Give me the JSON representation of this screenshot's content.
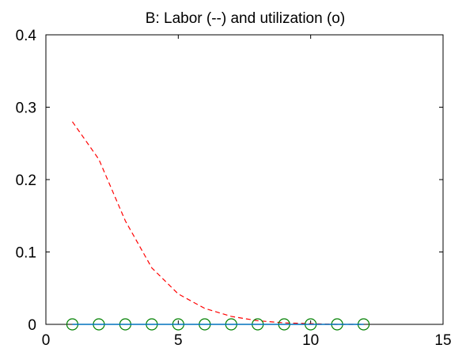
{
  "chart_data": {
    "type": "line",
    "title": "B: Labor (--) and utilization (o)",
    "xlabel": "",
    "ylabel": "",
    "xlim": [
      0,
      15
    ],
    "ylim": [
      0,
      0.4
    ],
    "xticks": [
      0,
      5,
      10,
      15
    ],
    "xtick_labels": [
      "0",
      "5",
      "10",
      "15"
    ],
    "yticks": [
      0,
      0.1,
      0.2,
      0.3,
      0.4
    ],
    "ytick_labels": [
      "0",
      "0.1",
      "0.2",
      "0.3",
      "0.4"
    ],
    "grid": false,
    "legend": "none",
    "series": [
      {
        "style": "dashed-line",
        "color": "#ff0000",
        "x": [
          1,
          2,
          3,
          4,
          5,
          6,
          7,
          8,
          9,
          10,
          11,
          12
        ],
        "y": [
          0.28,
          0.228,
          0.143,
          0.078,
          0.042,
          0.022,
          0.011,
          0.005,
          0.002,
          0.001,
          0.0,
          0.0
        ]
      },
      {
        "style": "circle-markers",
        "color": "#008000",
        "x": [
          1,
          2,
          3,
          4,
          5,
          6,
          7,
          8,
          9,
          10,
          11,
          12
        ],
        "y": [
          0,
          0,
          0,
          0,
          0,
          0,
          0,
          0,
          0,
          0,
          0,
          0
        ]
      },
      {
        "style": "solid-line",
        "color": "#0072bd",
        "x": [
          1,
          12
        ],
        "y": [
          0,
          0
        ]
      }
    ]
  }
}
